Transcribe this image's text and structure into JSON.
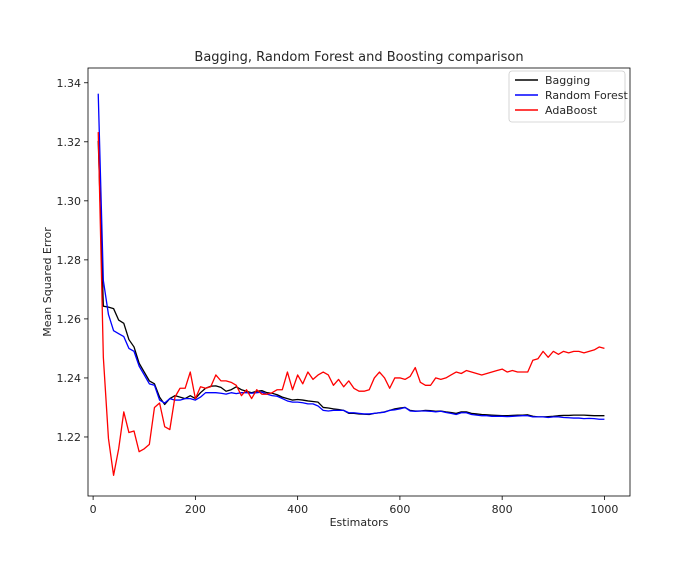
{
  "chart_data": {
    "type": "line",
    "title": "Bagging, Random Forest and Boosting comparison",
    "xlabel": "Estimators",
    "ylabel": "Mean Squared Error",
    "xlim": [
      -10,
      1050
    ],
    "ylim": [
      1.2,
      1.345
    ],
    "xticks": [
      0,
      200,
      400,
      600,
      800,
      1000
    ],
    "yticks": [
      1.22,
      1.24,
      1.26,
      1.28,
      1.3,
      1.32,
      1.34
    ],
    "grid": false,
    "legend_position": "top-right",
    "x": [
      10,
      20,
      30,
      40,
      50,
      60,
      70,
      80,
      90,
      100,
      110,
      120,
      130,
      140,
      150,
      160,
      170,
      180,
      190,
      200,
      210,
      220,
      230,
      240,
      250,
      260,
      270,
      280,
      290,
      300,
      310,
      320,
      330,
      340,
      350,
      360,
      370,
      380,
      390,
      400,
      410,
      420,
      430,
      440,
      450,
      460,
      470,
      480,
      490,
      500,
      510,
      520,
      530,
      540,
      550,
      560,
      570,
      580,
      590,
      600,
      610,
      620,
      630,
      640,
      650,
      660,
      670,
      680,
      690,
      700,
      710,
      720,
      730,
      740,
      750,
      760,
      770,
      780,
      790,
      800,
      810,
      820,
      830,
      840,
      850,
      860,
      870,
      880,
      890,
      900,
      910,
      920,
      930,
      940,
      950,
      960,
      970,
      980,
      990,
      1000
    ],
    "series": [
      {
        "name": "Bagging",
        "color": "#000000",
        "values": [
          1.3203,
          1.2643,
          1.264,
          1.2635,
          1.2596,
          1.2585,
          1.253,
          1.2505,
          1.245,
          1.242,
          1.239,
          1.238,
          1.2335,
          1.231,
          1.233,
          1.234,
          1.2335,
          1.233,
          1.234,
          1.233,
          1.235,
          1.2365,
          1.2372,
          1.2373,
          1.2368,
          1.2355,
          1.236,
          1.237,
          1.236,
          1.2355,
          1.235,
          1.2355,
          1.2357,
          1.235,
          1.2348,
          1.2343,
          1.2335,
          1.233,
          1.2325,
          1.2327,
          1.2325,
          1.2322,
          1.232,
          1.2318,
          1.23,
          1.2298,
          1.2295,
          1.2293,
          1.229,
          1.228,
          1.228,
          1.2278,
          1.2277,
          1.2276,
          1.228,
          1.2282,
          1.2285,
          1.229,
          1.2295,
          1.2298,
          1.23,
          1.229,
          1.2288,
          1.2288,
          1.229,
          1.2289,
          1.2287,
          1.2288,
          1.2285,
          1.2283,
          1.228,
          1.2285,
          1.2285,
          1.228,
          1.2278,
          1.2276,
          1.2275,
          1.2274,
          1.2273,
          1.2272,
          1.2272,
          1.2273,
          1.2274,
          1.2274,
          1.2275,
          1.227,
          1.2268,
          1.2268,
          1.2269,
          1.227,
          1.2272,
          1.2273,
          1.2273,
          1.2274,
          1.2274,
          1.2274,
          1.2273,
          1.2272,
          1.2272,
          1.2272
        ]
      },
      {
        "name": "Random Forest",
        "color": "#0000ff",
        "values": [
          1.3363,
          1.273,
          1.2615,
          1.256,
          1.255,
          1.254,
          1.25,
          1.249,
          1.244,
          1.241,
          1.238,
          1.2375,
          1.2325,
          1.2315,
          1.233,
          1.2325,
          1.2325,
          1.233,
          1.233,
          1.2325,
          1.2335,
          1.235,
          1.235,
          1.235,
          1.2348,
          1.2345,
          1.235,
          1.2347,
          1.235,
          1.235,
          1.2348,
          1.235,
          1.2352,
          1.2345,
          1.234,
          1.2338,
          1.233,
          1.2322,
          1.2318,
          1.2318,
          1.2316,
          1.2312,
          1.2312,
          1.2305,
          1.229,
          1.2288,
          1.229,
          1.229,
          1.229,
          1.2282,
          1.2282,
          1.228,
          1.2278,
          1.2278,
          1.228,
          1.2282,
          1.2284,
          1.229,
          1.2292,
          1.2295,
          1.23,
          1.2288,
          1.2287,
          1.2288,
          1.2288,
          1.2287,
          1.2285,
          1.2287,
          1.2283,
          1.228,
          1.2276,
          1.2282,
          1.2282,
          1.2276,
          1.2274,
          1.2272,
          1.2272,
          1.227,
          1.227,
          1.227,
          1.2269,
          1.227,
          1.2271,
          1.2272,
          1.2272,
          1.2268,
          1.2268,
          1.2268,
          1.2266,
          1.2268,
          1.2268,
          1.2266,
          1.2265,
          1.2264,
          1.2264,
          1.2262,
          1.2263,
          1.2262,
          1.226,
          1.226
        ]
      },
      {
        "name": "AdaBoost",
        "color": "#ff0000",
        "values": [
          1.3233,
          1.247,
          1.2195,
          1.207,
          1.216,
          1.2285,
          1.2215,
          1.222,
          1.215,
          1.216,
          1.2175,
          1.23,
          1.2315,
          1.2235,
          1.2225,
          1.2335,
          1.2365,
          1.2365,
          1.242,
          1.233,
          1.237,
          1.2365,
          1.237,
          1.241,
          1.239,
          1.239,
          1.2385,
          1.2375,
          1.234,
          1.236,
          1.233,
          1.236,
          1.2345,
          1.2345,
          1.235,
          1.236,
          1.236,
          1.242,
          1.236,
          1.241,
          1.238,
          1.242,
          1.2395,
          1.241,
          1.242,
          1.241,
          1.2375,
          1.2395,
          1.237,
          1.239,
          1.2365,
          1.2355,
          1.2355,
          1.236,
          1.24,
          1.242,
          1.24,
          1.2365,
          1.24,
          1.24,
          1.2395,
          1.2405,
          1.2435,
          1.2385,
          1.2375,
          1.2375,
          1.24,
          1.2395,
          1.24,
          1.241,
          1.242,
          1.2415,
          1.2425,
          1.242,
          1.2415,
          1.241,
          1.2415,
          1.242,
          1.2425,
          1.243,
          1.242,
          1.2425,
          1.242,
          1.242,
          1.242,
          1.246,
          1.2465,
          1.249,
          1.247,
          1.249,
          1.248,
          1.249,
          1.2485,
          1.249,
          1.249,
          1.2485,
          1.249,
          1.2495,
          1.2505,
          1.25
        ]
      }
    ]
  }
}
